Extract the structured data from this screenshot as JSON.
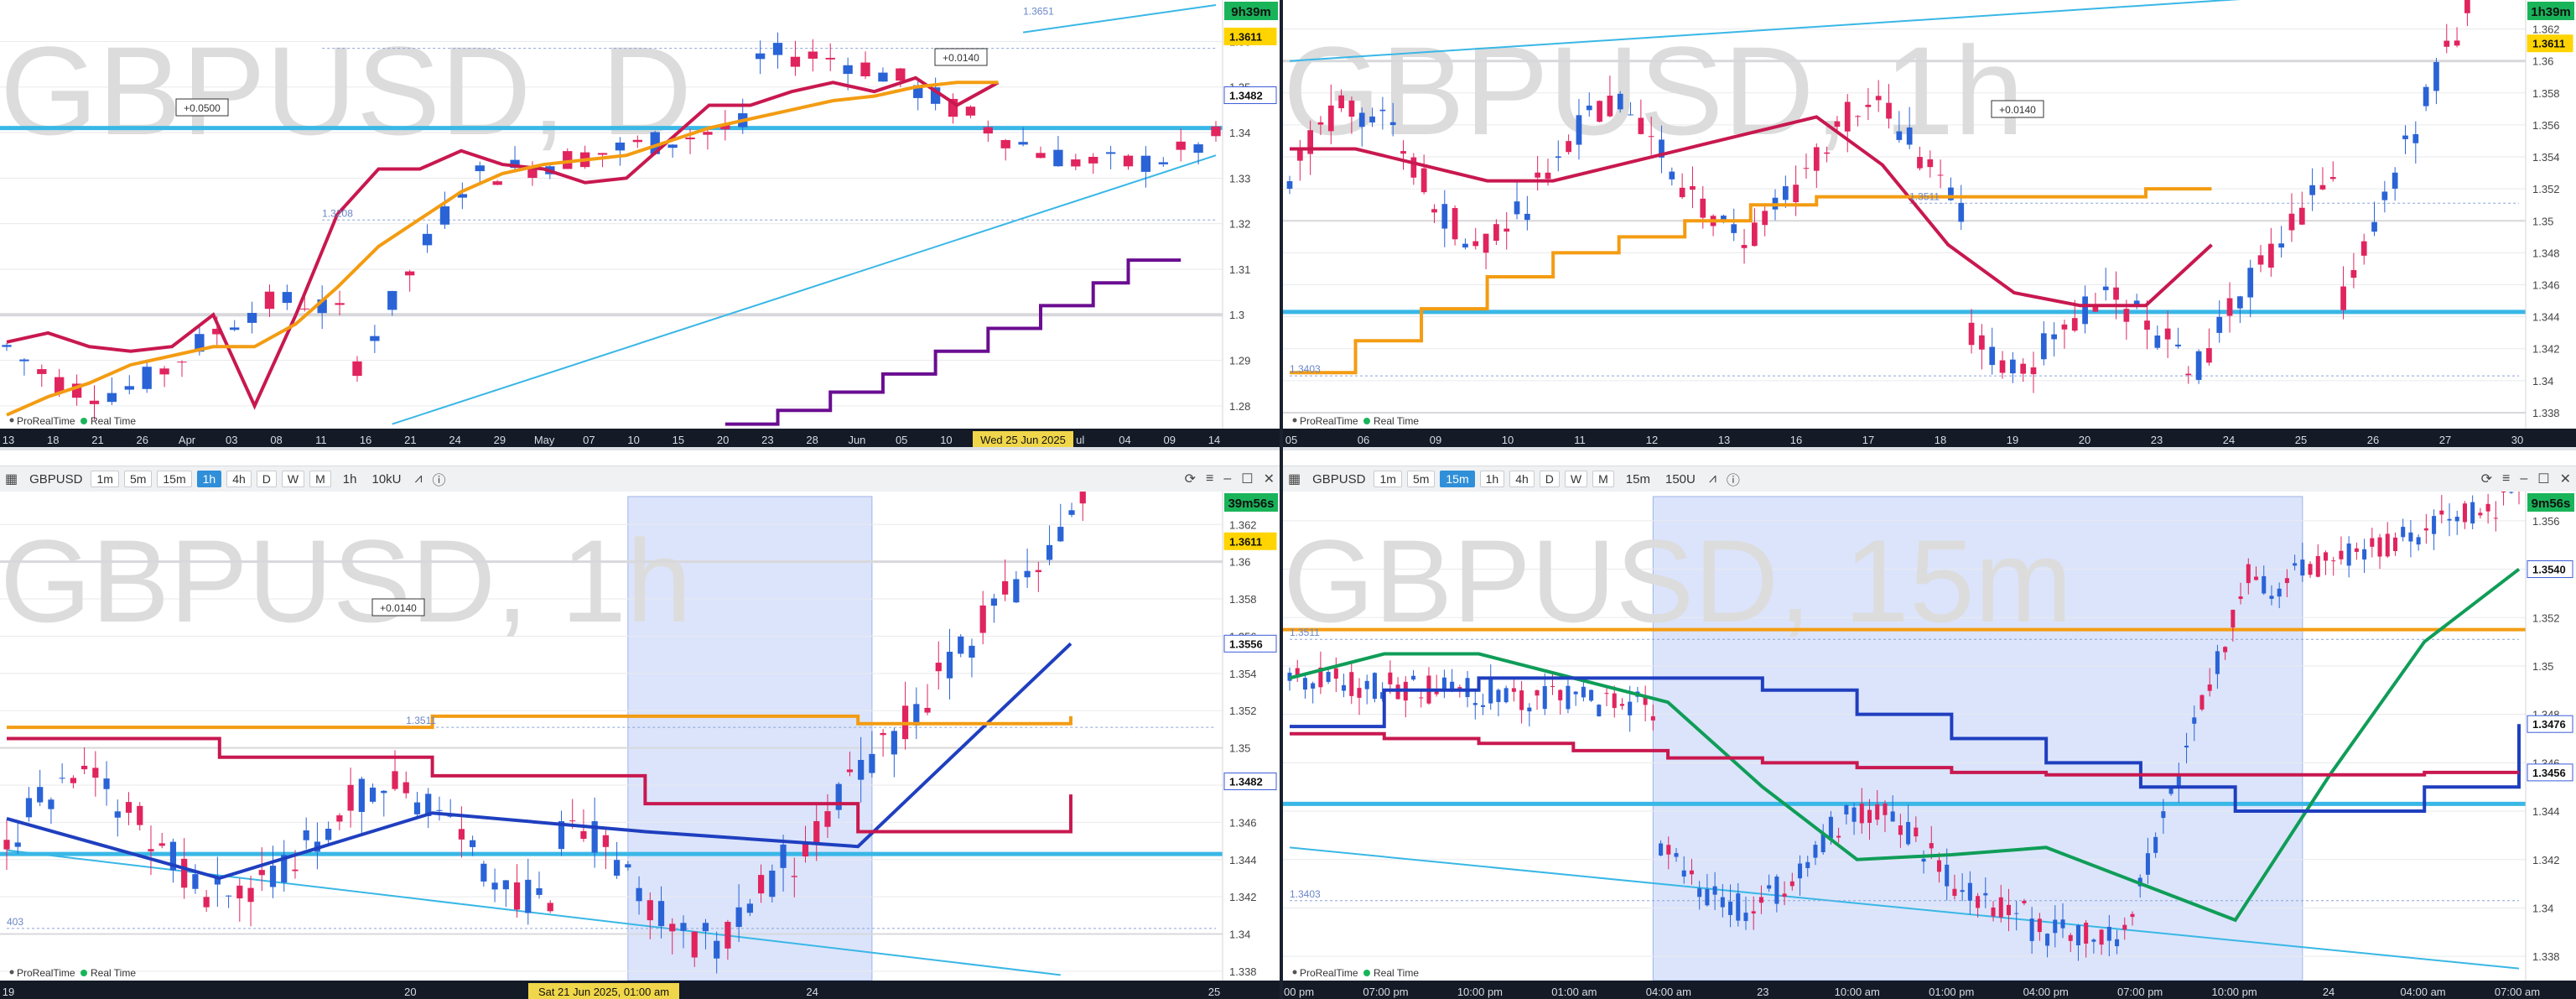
{
  "panels": [
    {
      "id": "tl",
      "watermark": "GBPUSD, D",
      "timer": "9h39m",
      "footer": "ProRealTime",
      "realtime": "Real Time",
      "price_labels": [
        "1.36",
        "1.35",
        "1.34",
        "1.33",
        "1.32",
        "1.31",
        "1.3",
        "1.29",
        "1.28"
      ],
      "date_labels": [
        "13",
        "18",
        "21",
        "26",
        "Apr",
        "03",
        "08",
        "11",
        "16",
        "21",
        "24",
        "29",
        "May",
        "07",
        "10",
        "15",
        "20",
        "23",
        "28",
        "Jun",
        "05",
        "10",
        "13",
        "18",
        "ul",
        "04",
        "09",
        "14"
      ],
      "date_badge": "Wed 25 Jun 2025",
      "badges": [
        {
          "text": "1.3611",
          "color": "#ffd400"
        },
        {
          "text": "1.3482",
          "color": "#ffffff"
        }
      ],
      "boxes": [
        "+0.0500",
        "+0.0140"
      ],
      "levels": [
        "1.3208",
        "1.3651"
      ]
    },
    {
      "id": "tr",
      "watermark": "GBPUSD, 1h",
      "timer": "1h39m",
      "footer": "ProRealTime",
      "realtime": "Real Time",
      "price_labels": [
        "1.362",
        "1.36",
        "1.358",
        "1.356",
        "1.354",
        "1.352",
        "1.35",
        "1.348",
        "1.346",
        "1.344",
        "1.342",
        "1.34",
        "1.338"
      ],
      "date_labels": [
        "05",
        "06",
        "09",
        "10",
        "11",
        "12",
        "13",
        "16",
        "17",
        "18",
        "19",
        "20",
        "23",
        "24",
        "25",
        "26",
        "27",
        "30"
      ],
      "badges": [
        {
          "text": "1.3611",
          "color": "#ffd400"
        }
      ],
      "boxes": [
        "+0.0140"
      ],
      "levels": [
        "1.3511",
        "1.3403"
      ]
    },
    {
      "id": "bl",
      "watermark": "GBPUSD, 1h",
      "timer": "39m56s",
      "footer": "ProRealTime",
      "realtime": "Real Time",
      "toolbar": {
        "symbol": "GBPUSD",
        "tfs": [
          "1m",
          "5m",
          "15m",
          "1h",
          "4h",
          "D",
          "W",
          "M"
        ],
        "active": "1h",
        "interval": "1h",
        "units": "10kU"
      },
      "price_labels": [
        "1.362",
        "1.36",
        "1.358",
        "1.356",
        "1.354",
        "1.352",
        "1.35",
        "1.348",
        "1.346",
        "1.344",
        "1.342",
        "1.34",
        "1.338"
      ],
      "date_labels": [
        "19",
        "20",
        "24",
        "25"
      ],
      "date_badge": "Sat 21 Jun 2025, 01:00 am",
      "badges": [
        {
          "text": "1.3611",
          "color": "#ffd400"
        },
        {
          "text": "1.3556",
          "color": "#ffffff"
        },
        {
          "text": "1.3482",
          "color": "#ffffff"
        }
      ],
      "boxes": [
        "+0.0140"
      ],
      "levels": [
        "1.3511",
        "403"
      ]
    },
    {
      "id": "br",
      "watermark": "GBPUSD, 15m",
      "timer": "9m56s",
      "footer": "ProRealTime",
      "realtime": "Real Time",
      "toolbar": {
        "symbol": "GBPUSD",
        "tfs": [
          "1m",
          "5m",
          "15m",
          "1h",
          "4h",
          "D",
          "W",
          "M"
        ],
        "active": "15m",
        "interval": "15m",
        "units": "150U"
      },
      "price_labels": [
        "1.356",
        "1.354",
        "1.352",
        "1.35",
        "1.348",
        "1.346",
        "1.344",
        "1.342",
        "1.34",
        "1.338"
      ],
      "date_labels": [
        "04:00 pm",
        "07:00 pm",
        "10:00 pm",
        "01:00 am",
        "04:00 am",
        "23",
        "10:00 am",
        "01:00 pm",
        "04:00 pm",
        "07:00 pm",
        "10:00 pm",
        "24",
        "04:00 am",
        "07:00 am"
      ],
      "badges": [
        {
          "text": "1.3540",
          "color": "#ffffff"
        },
        {
          "text": "1.3476",
          "color": "#ffffff"
        },
        {
          "text": "1.3456",
          "color": "#ffffff"
        }
      ],
      "boxes": [],
      "levels": [
        "1.3511",
        "1.3403"
      ]
    }
  ],
  "colors": {
    "up": "#2a63d6",
    "down": "#e0245e",
    "orange": "#f39c12",
    "crimson": "#c8184f",
    "purple": "#6a0d91",
    "cyan": "#39b7e6",
    "blue_ma": "#1f3fbf",
    "green": "#0f9d58",
    "highlight": "#dbe4fb"
  },
  "chart_data": [
    {
      "type": "line",
      "title": "GBPUSD, D",
      "xlabel": "",
      "ylabel": "",
      "x": [
        "Mar 13",
        "Mar 18",
        "Mar 21",
        "Mar 26",
        "Apr 01",
        "Apr 03",
        "Apr 08",
        "Apr 11",
        "Apr 16",
        "Apr 21",
        "Apr 24",
        "Apr 29",
        "May 01",
        "May 07",
        "May 10",
        "May 15",
        "May 20",
        "May 23",
        "May 28",
        "Jun 01",
        "Jun 05",
        "Jun 10",
        "Jun 13",
        "Jun 18",
        "Jun 25"
      ],
      "series": [
        {
          "values": [
            1.294,
            1.296,
            1.293,
            1.292,
            1.293,
            1.3,
            1.28,
            1.3,
            1.322,
            1.332,
            1.332,
            1.336,
            1.333,
            1.332,
            1.329,
            1.33,
            1.338,
            1.346,
            1.346,
            1.349,
            1.351,
            1.349,
            1.352,
            1.346,
            1.351
          ]
        },
        {
          "values": [
            1.278,
            1.282,
            1.285,
            1.289,
            1.291,
            1.293,
            1.293,
            1.298,
            1.306,
            1.315,
            1.321,
            1.327,
            1.331,
            1.333,
            1.334,
            1.335,
            1.338,
            1.341,
            1.343,
            1.345,
            1.347,
            1.348,
            1.35,
            1.351,
            1.351
          ]
        }
      ],
      "ylim": [
        1.275,
        1.368
      ]
    },
    {
      "type": "line",
      "title": "GBPUSD, 1h",
      "xlabel": "",
      "ylabel": "",
      "x": [
        "05",
        "06",
        "09",
        "10",
        "11",
        "12",
        "13",
        "16",
        "17",
        "18",
        "19",
        "20",
        "23",
        "24",
        "25"
      ],
      "series": [
        {
          "values": [
            1.3545,
            1.3545,
            1.3535,
            1.3525,
            1.3525,
            1.3535,
            1.3545,
            1.3555,
            1.3565,
            1.3535,
            1.3485,
            1.3455,
            1.3447,
            1.3447,
            1.3485
          ]
        },
        {
          "values": [
            1.3405,
            1.3425,
            1.3445,
            1.3465,
            1.348,
            1.349,
            1.35,
            1.351,
            1.3515,
            1.3515,
            1.3515,
            1.3515,
            1.3515,
            1.352,
            1.352
          ]
        }
      ],
      "ylim": [
        1.337,
        1.3635
      ]
    },
    {
      "type": "line",
      "title": "GBPUSD, 1h",
      "xlabel": "",
      "ylabel": "",
      "x": [
        "19",
        "20",
        "21",
        "23",
        "24",
        "25"
      ],
      "series": [
        {
          "values": [
            1.3462,
            1.343,
            1.3465,
            1.3455,
            1.3447,
            1.3556
          ]
        },
        {
          "values": [
            1.3505,
            1.3495,
            1.3485,
            1.347,
            1.3455,
            1.3475
          ]
        },
        {
          "values": [
            1.3511,
            1.3511,
            1.3517,
            1.3517,
            1.3513,
            1.3517
          ]
        }
      ],
      "ylim": [
        1.3375,
        1.3635
      ]
    },
    {
      "type": "line",
      "title": "GBPUSD, 15m",
      "xlabel": "",
      "ylabel": "",
      "x": [
        "04:00 pm",
        "07:00 pm",
        "10:00 pm",
        "01:00 am",
        "04:00 am",
        "23",
        "10:00 am",
        "01:00 pm",
        "04:00 pm",
        "07:00 pm",
        "10:00 pm",
        "24",
        "04:00 am",
        "07:00 am"
      ],
      "series": [
        {
          "values": [
            1.3495,
            1.3505,
            1.3505,
            1.3495,
            1.3485,
            1.345,
            1.342,
            1.3422,
            1.3425,
            1.341,
            1.3395,
            1.3455,
            1.351,
            1.354
          ]
        },
        {
          "values": [
            1.3475,
            1.349,
            1.3495,
            1.3495,
            1.3495,
            1.349,
            1.348,
            1.347,
            1.346,
            1.345,
            1.344,
            1.344,
            1.345,
            1.3476
          ]
        },
        {
          "values": [
            1.3472,
            1.347,
            1.3468,
            1.3465,
            1.3462,
            1.346,
            1.3458,
            1.3456,
            1.3455,
            1.3455,
            1.3455,
            1.3455,
            1.3456,
            1.3456
          ]
        }
      ],
      "ylim": [
        1.337,
        1.357
      ]
    }
  ]
}
